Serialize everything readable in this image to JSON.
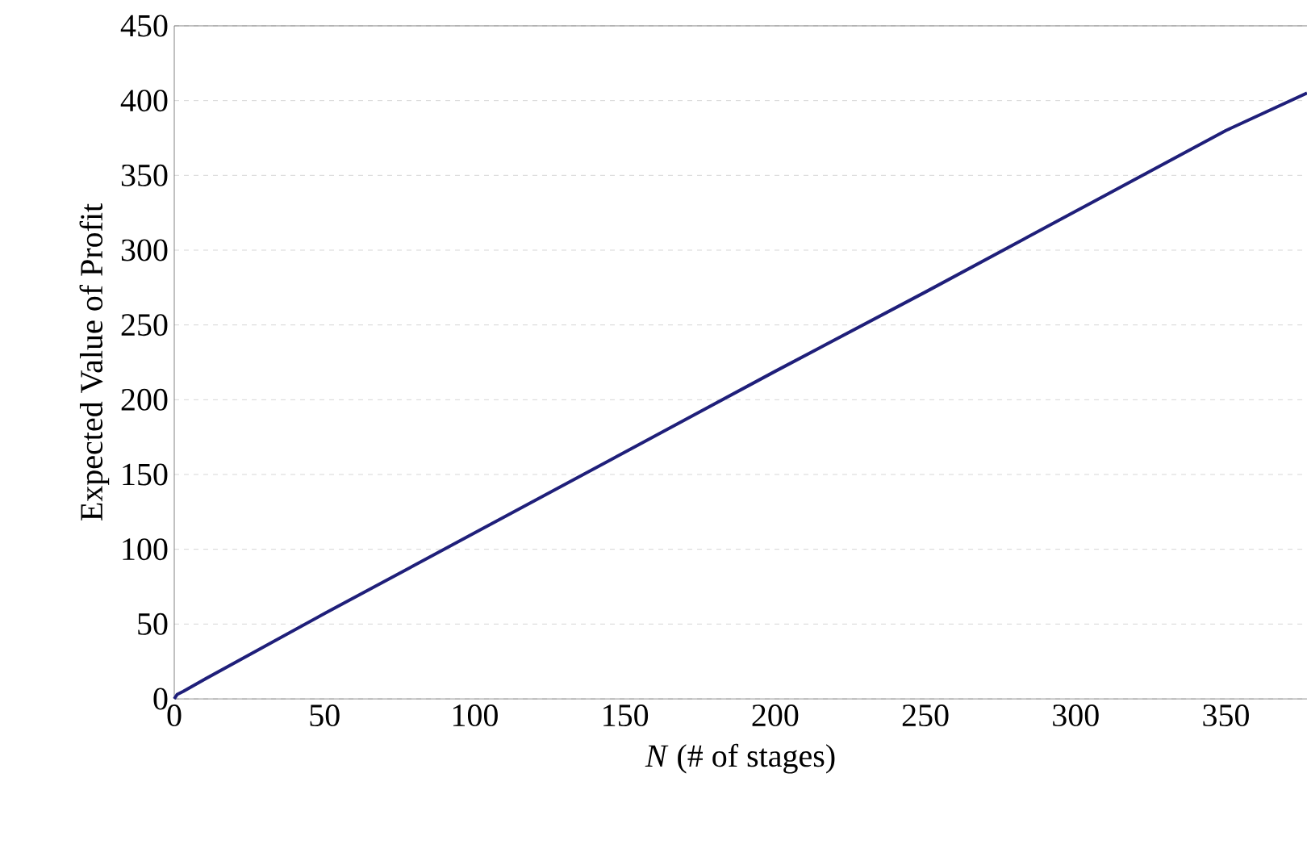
{
  "chart_data": {
    "type": "line",
    "xlabel": "*N* (# of stages)",
    "ylabel": "Expected Value of Profit",
    "x": [
      0,
      1,
      3,
      10,
      50,
      100,
      150,
      200,
      250,
      300,
      350,
      377
    ],
    "series": [
      {
        "color": "#1f1f7a",
        "values": [
          0,
          3,
          5,
          13,
          57,
          111,
          165,
          219,
          272,
          326,
          380,
          405
        ]
      }
    ],
    "xlim": [
      0,
      377
    ],
    "ylim": [
      0,
      450
    ],
    "xticks": [
      0,
      50,
      100,
      150,
      200,
      250,
      300,
      350
    ],
    "yticks": [
      0,
      50,
      100,
      150,
      200,
      250,
      300,
      350,
      400,
      450
    ],
    "grid": "y",
    "marker": "none",
    "line_style": "solid"
  }
}
